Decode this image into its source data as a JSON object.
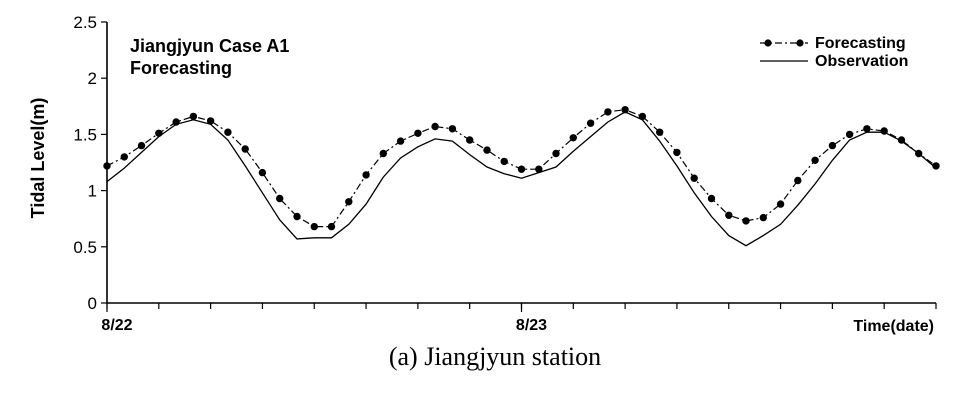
{
  "caption": "(a) Jiangjyun station",
  "chart_data": {
    "type": "line",
    "annotation": [
      "Jiangjyun Case A1",
      "Forecasting"
    ],
    "xlabel": "Time(date)",
    "ylabel": "Tidal Level(m)",
    "ylim": [
      0,
      2.5
    ],
    "yticks": [
      "0",
      "0.5",
      "1",
      "1.5",
      "2",
      "2.5"
    ],
    "xticks": [
      {
        "label": "8/22",
        "x": 0
      },
      {
        "label": "8/23",
        "x": 24
      }
    ],
    "xlim": [
      0,
      48
    ],
    "minor_tick_step": 3,
    "legend_position": "top-right",
    "series": [
      {
        "name": "Forecasting",
        "style": "dash-dot with filled circle markers",
        "x": [
          0,
          1,
          2,
          3,
          4,
          5,
          6,
          7,
          8,
          9,
          10,
          11,
          12,
          13,
          14,
          15,
          16,
          17,
          18,
          19,
          20,
          21,
          22,
          23,
          24,
          25,
          26,
          27,
          28,
          29,
          30,
          31,
          32,
          33,
          34,
          35,
          36,
          37,
          38,
          39,
          40,
          41,
          42,
          43,
          44,
          45,
          46,
          47,
          48
        ],
        "values": [
          1.22,
          1.3,
          1.4,
          1.51,
          1.61,
          1.66,
          1.62,
          1.52,
          1.37,
          1.16,
          0.93,
          0.77,
          0.68,
          0.68,
          0.9,
          1.14,
          1.33,
          1.44,
          1.51,
          1.57,
          1.55,
          1.45,
          1.36,
          1.26,
          1.19,
          1.19,
          1.33,
          1.47,
          1.6,
          1.7,
          1.72,
          1.66,
          1.52,
          1.34,
          1.11,
          0.93,
          0.78,
          0.73,
          0.76,
          0.88,
          1.09,
          1.27,
          1.4,
          1.5,
          1.55,
          1.53,
          1.45,
          1.33,
          1.22
        ]
      },
      {
        "name": "Observation",
        "style": "solid",
        "x": [
          0,
          1,
          2,
          3,
          4,
          5,
          6,
          7,
          8,
          9,
          10,
          11,
          12,
          13,
          14,
          15,
          16,
          17,
          18,
          19,
          20,
          21,
          22,
          23,
          24,
          25,
          26,
          27,
          28,
          29,
          30,
          31,
          32,
          33,
          34,
          35,
          36,
          37,
          38,
          39,
          40,
          41,
          42,
          43,
          44,
          45,
          46,
          47,
          48
        ],
        "values": [
          1.08,
          1.2,
          1.34,
          1.48,
          1.59,
          1.63,
          1.59,
          1.45,
          1.22,
          0.98,
          0.74,
          0.57,
          0.58,
          0.58,
          0.7,
          0.88,
          1.12,
          1.29,
          1.39,
          1.46,
          1.44,
          1.32,
          1.21,
          1.15,
          1.11,
          1.16,
          1.21,
          1.35,
          1.48,
          1.61,
          1.7,
          1.63,
          1.44,
          1.22,
          0.98,
          0.77,
          0.6,
          0.51,
          0.6,
          0.7,
          0.87,
          1.06,
          1.27,
          1.45,
          1.52,
          1.52,
          1.44,
          1.33,
          1.2
        ]
      }
    ]
  }
}
